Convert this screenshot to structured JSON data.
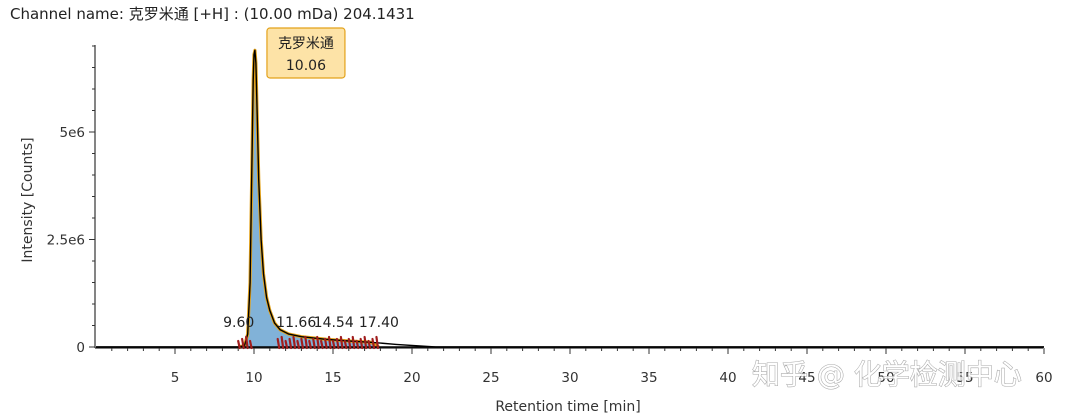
{
  "header": {
    "channel_title": "Channel name: 克罗米通 [+H] : (10.00 mDa) 204.1431"
  },
  "watermark": {
    "text": "知乎 @ 化学检测中心"
  },
  "colors": {
    "peak_fill": "#7aaed6",
    "peak_outline": "#e3a21a",
    "trace": "#000000",
    "integration_marks": "#a11d1d",
    "badge_fill": "#fde3a7",
    "badge_border": "#e3a21a"
  },
  "chart_data": {
    "type": "line",
    "xlabel": "Retention time [min]",
    "ylabel": "Intensity [Counts]",
    "xlim": [
      0,
      60
    ],
    "ylim": [
      -400000,
      7400000
    ],
    "x_ticks": [
      5,
      10,
      15,
      20,
      25,
      30,
      35,
      40,
      45,
      50,
      55,
      60
    ],
    "x_tick_labels": [
      "5",
      "10",
      "15",
      "20",
      "25",
      "30",
      "35",
      "40",
      "45",
      "50",
      "55",
      "60"
    ],
    "y_ticks": [
      0,
      2500000,
      5000000
    ],
    "y_tick_labels": [
      "0",
      "2.5e6",
      "5e6"
    ],
    "series": [
      {
        "x": [
          0,
          9.0,
          9.4,
          9.6,
          9.75,
          9.85,
          9.95,
          10.0,
          10.06,
          10.12,
          10.2,
          10.3,
          10.45,
          10.6,
          10.8,
          11.0,
          11.3,
          11.66,
          12.2,
          13.0,
          14.54,
          16.0,
          17.4,
          19.0,
          21.5,
          30,
          60
        ],
        "y": [
          0,
          0,
          30000,
          300000,
          1500000,
          3800000,
          6200000,
          6800000,
          6900000,
          6600000,
          5400000,
          3900000,
          2500000,
          1700000,
          1150000,
          850000,
          560000,
          400000,
          300000,
          240000,
          180000,
          140000,
          110000,
          60000,
          0,
          0,
          0
        ]
      }
    ],
    "peak_labels": [
      {
        "x": 9.6,
        "label": "9.60"
      },
      {
        "x": 11.66,
        "label": "11.66"
      },
      {
        "x": 14.54,
        "label": "14.54"
      },
      {
        "x": 17.4,
        "label": "17.40"
      }
    ],
    "main_peak": {
      "x": 10.06,
      "y": 6900000,
      "compound": "克罗米通",
      "rt": "10.06"
    },
    "integration_range": [
      9.0,
      17.9
    ]
  }
}
